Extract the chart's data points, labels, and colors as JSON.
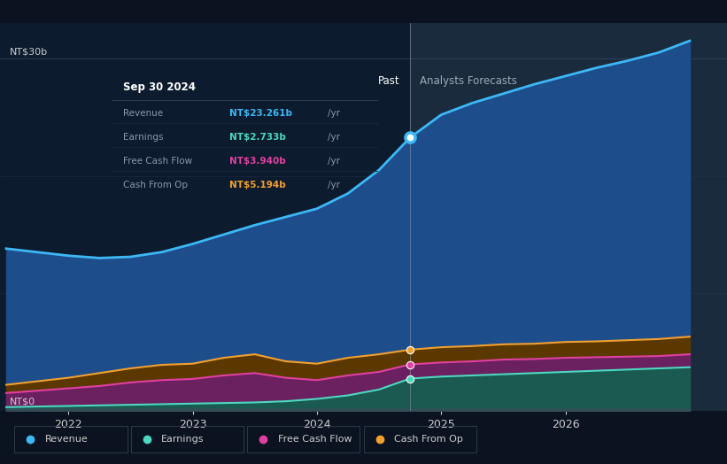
{
  "bg_color": "#0b1320",
  "plot_bg_color": "#0d1b2e",
  "forecast_bg_color": "#1a2b3e",
  "divider_x": 2024.75,
  "past_label": "Past",
  "forecast_label": "Analysts Forecasts",
  "ylabel_30": "NT$30b",
  "ylabel_0": "NT$0",
  "xticks": [
    2022,
    2023,
    2024,
    2025,
    2026
  ],
  "ylim": [
    0,
    33
  ],
  "xlim": [
    2021.45,
    2027.3
  ],
  "revenue": {
    "color": "#3db8f5",
    "fill_color": "#1e4d8c",
    "label": "Revenue",
    "x": [
      2021.5,
      2021.75,
      2022.0,
      2022.25,
      2022.5,
      2022.75,
      2023.0,
      2023.25,
      2023.5,
      2023.75,
      2024.0,
      2024.25,
      2024.5,
      2024.75,
      2025.0,
      2025.25,
      2025.5,
      2025.75,
      2026.0,
      2026.25,
      2026.5,
      2026.75,
      2027.0
    ],
    "y": [
      13.8,
      13.5,
      13.2,
      13.0,
      13.1,
      13.5,
      14.2,
      15.0,
      15.8,
      16.5,
      17.2,
      18.5,
      20.5,
      23.261,
      25.2,
      26.2,
      27.0,
      27.8,
      28.5,
      29.2,
      29.8,
      30.5,
      31.5
    ]
  },
  "earnings": {
    "color": "#4dd8c0",
    "fill_color": "#1a5a50",
    "label": "Earnings",
    "x": [
      2021.5,
      2021.75,
      2022.0,
      2022.25,
      2022.5,
      2022.75,
      2023.0,
      2023.25,
      2023.5,
      2023.75,
      2024.0,
      2024.25,
      2024.5,
      2024.75,
      2025.0,
      2025.25,
      2025.5,
      2025.75,
      2026.0,
      2026.25,
      2026.5,
      2026.75,
      2027.0
    ],
    "y": [
      0.3,
      0.35,
      0.4,
      0.45,
      0.5,
      0.55,
      0.6,
      0.65,
      0.7,
      0.8,
      1.0,
      1.3,
      1.8,
      2.733,
      2.9,
      3.0,
      3.1,
      3.2,
      3.3,
      3.4,
      3.5,
      3.6,
      3.7
    ]
  },
  "fcf": {
    "color": "#e040a0",
    "fill_color": "#6b2060",
    "label": "Free Cash Flow",
    "x": [
      2021.5,
      2021.75,
      2022.0,
      2022.25,
      2022.5,
      2022.75,
      2023.0,
      2023.25,
      2023.5,
      2023.75,
      2024.0,
      2024.25,
      2024.5,
      2024.75,
      2025.0,
      2025.25,
      2025.5,
      2025.75,
      2026.0,
      2026.25,
      2026.5,
      2026.75,
      2027.0
    ],
    "y": [
      1.5,
      1.7,
      1.9,
      2.1,
      2.4,
      2.6,
      2.7,
      3.0,
      3.2,
      2.8,
      2.6,
      3.0,
      3.3,
      3.94,
      4.1,
      4.2,
      4.35,
      4.4,
      4.5,
      4.55,
      4.6,
      4.65,
      4.8
    ]
  },
  "cashop": {
    "color": "#f0a030",
    "fill_color": "#5a3800",
    "label": "Cash From Op",
    "x": [
      2021.5,
      2021.75,
      2022.0,
      2022.25,
      2022.5,
      2022.75,
      2023.0,
      2023.25,
      2023.5,
      2023.75,
      2024.0,
      2024.25,
      2024.5,
      2024.75,
      2025.0,
      2025.25,
      2025.5,
      2025.75,
      2026.0,
      2026.25,
      2026.5,
      2026.75,
      2027.0
    ],
    "y": [
      2.2,
      2.5,
      2.8,
      3.2,
      3.6,
      3.9,
      4.0,
      4.5,
      4.8,
      4.2,
      4.0,
      4.5,
      4.8,
      5.194,
      5.4,
      5.5,
      5.65,
      5.7,
      5.85,
      5.9,
      6.0,
      6.1,
      6.3
    ]
  },
  "tooltip": {
    "date": "Sep 30 2024",
    "rows": [
      {
        "label": "Revenue",
        "val": "NT$23.261b",
        "color": "#3db8f5"
      },
      {
        "label": "Earnings",
        "val": "NT$2.733b",
        "color": "#4dd8c0"
      },
      {
        "label": "Free Cash Flow",
        "val": "NT$3.940b",
        "color": "#e040a0"
      },
      {
        "label": "Cash From Op",
        "val": "NT$5.194b",
        "color": "#f0a030"
      }
    ]
  },
  "legend_items": [
    {
      "label": "Revenue",
      "color": "#3db8f5"
    },
    {
      "label": "Earnings",
      "color": "#4dd8c0"
    },
    {
      "label": "Free Cash Flow",
      "color": "#e040a0"
    },
    {
      "label": "Cash From Op",
      "color": "#f0a030"
    }
  ]
}
